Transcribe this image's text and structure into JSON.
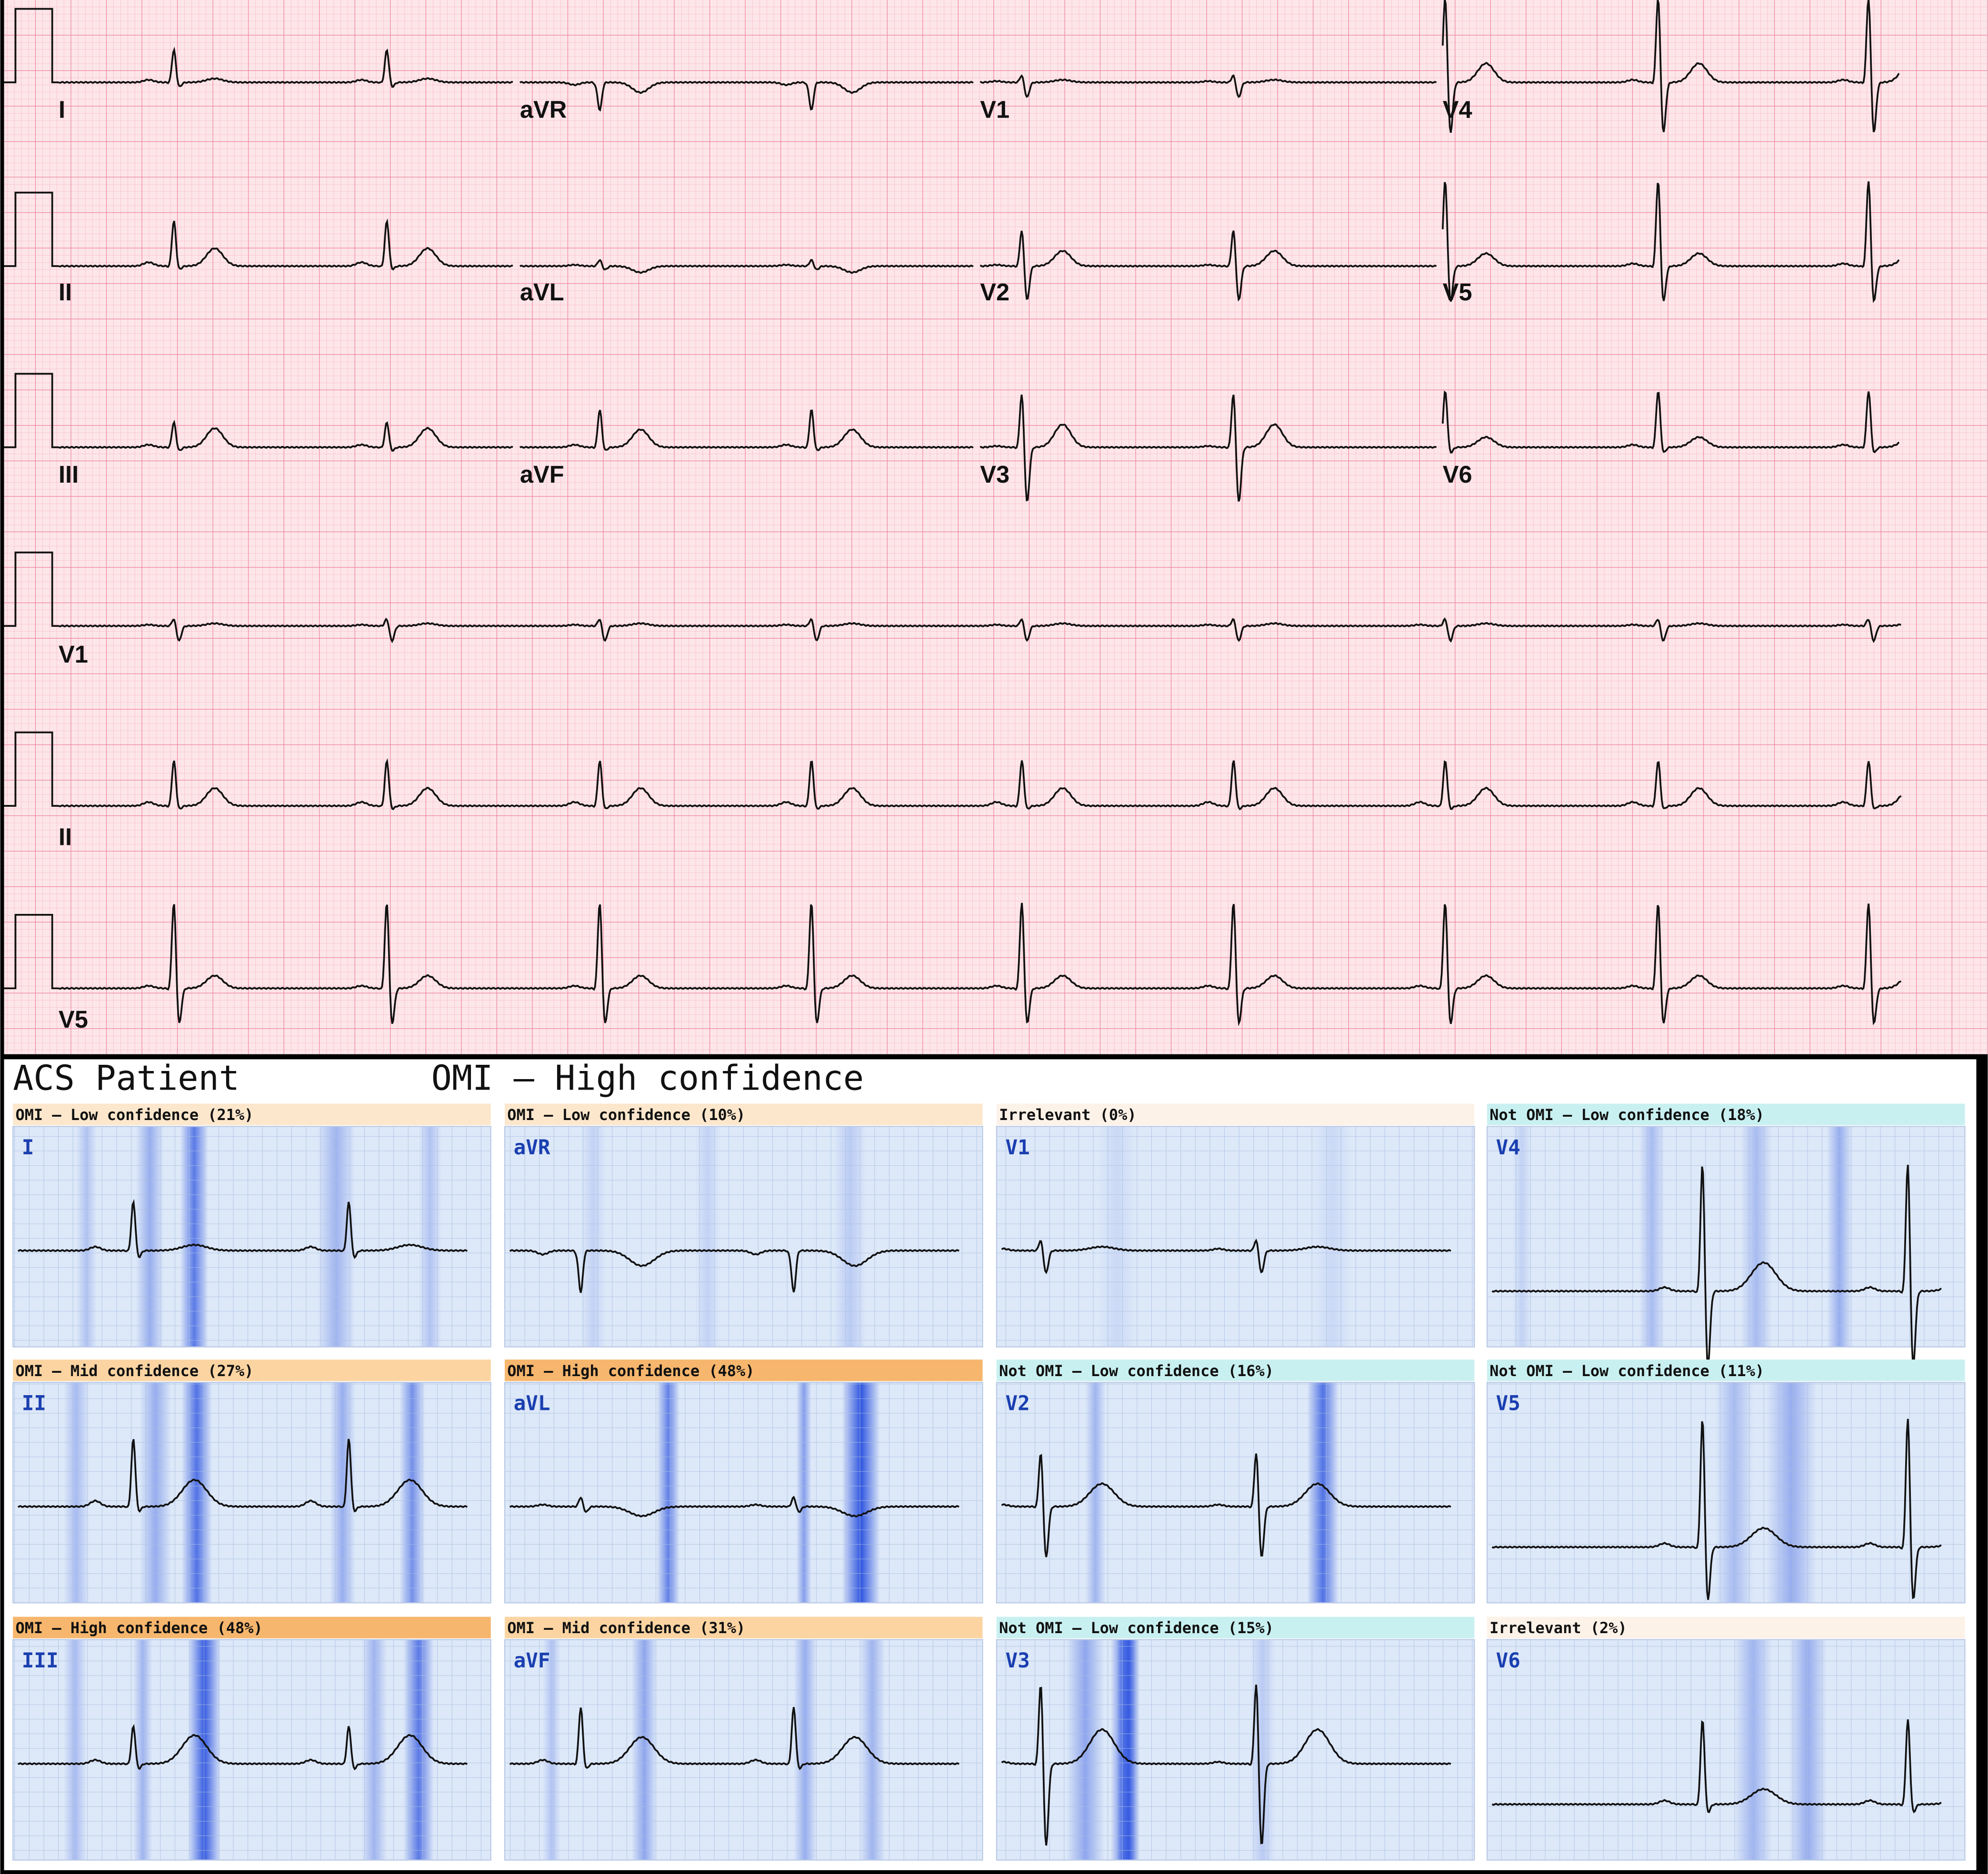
{
  "ecg": {
    "rows": [
      [
        "I",
        "aVR",
        "V1",
        "V4"
      ],
      [
        "II",
        "aVL",
        "V2",
        "V5"
      ],
      [
        "III",
        "aVF",
        "V3",
        "V6"
      ]
    ],
    "rhythm": [
      "V1",
      "II",
      "V5"
    ]
  },
  "summary": {
    "patient": "ACS Patient",
    "prediction": "OMI – High confidence"
  },
  "panels": [
    {
      "header": "OMI – Low confidence (21%)",
      "lead": "I"
    },
    {
      "header": "OMI – Low confidence (10%)",
      "lead": "aVR"
    },
    {
      "header": "Irrelevant (0%)",
      "lead": "V1"
    },
    {
      "header": "Not OMI – Low confidence (18%)",
      "lead": "V4"
    },
    {
      "header": "OMI – Mid confidence (27%)",
      "lead": "II"
    },
    {
      "header": "OMI – High confidence (48%)",
      "lead": "aVL"
    },
    {
      "header": "Not OMI – Low confidence (16%)",
      "lead": "V2"
    },
    {
      "header": "Not OMI – Low confidence (11%)",
      "lead": "V5"
    },
    {
      "header": "OMI – High confidence (48%)",
      "lead": "III"
    },
    {
      "header": "OMI – Mid confidence (31%)",
      "lead": "aVF"
    },
    {
      "header": "Not OMI – Low confidence (15%)",
      "lead": "V3"
    },
    {
      "header": "Irrelevant (2%)",
      "lead": "V6"
    }
  ]
}
